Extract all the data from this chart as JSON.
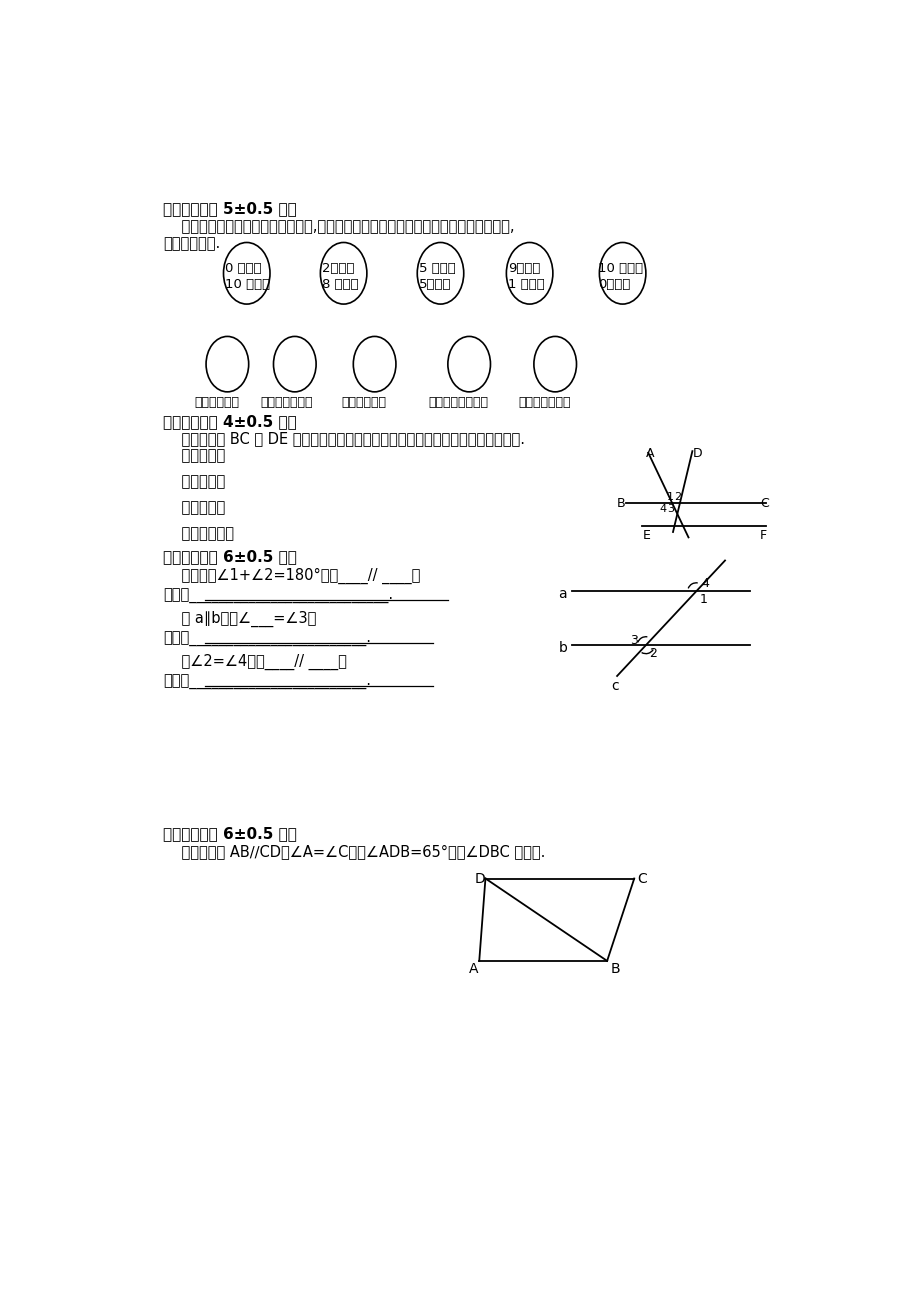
{
  "bg_color": "#ffffff",
  "section5_title": "五、（本大题 5±0.5 分）",
  "section5_desc": "    下面第一排表示了各袋中球的情况,请你用第二排的语言来描述摸到红球的可能性大小,",
  "section5_desc2": "并用线连起来.",
  "balls_row1_line1": [
    "0 个红球",
    "2个红球",
    "5 个红球",
    "9个红球",
    "10 个红球"
  ],
  "balls_row1_line2": [
    "10 个白球",
    "8 个白球",
    "5个白球",
    "1 个白球",
    "0个白球"
  ],
  "balls_row2": [
    "一定摸到红球",
    "很可能摸到红球",
    "可能摸到红球",
    "不太可能摸到红球",
    "不可能摸到红球"
  ],
  "section6_title": "六、（本大题 4±0.5 分）",
  "section6_desc": "    如图，直线 BC 与 DE 相交，请分别指出图的对顶角、内错角、同位角和同旁内角.",
  "section6_q1": "    对顶角有：",
  "section6_q2": "    同位角有：",
  "section6_q3": "    内错角有：",
  "section6_q4": "    同旁内角有：",
  "section7_title": "七、（本大题 6±0.5 分）",
  "section7_q1": "    如图，若∠1+∠2=180°，则____// ____，",
  "section7_q1b": "理由是___________________________.",
  "section7_q2": "    若 a∥b，则∠___=∠3，",
  "section7_q2b": "理由是________________________.",
  "section7_q3": "    若∠2=∠4，则____// ____，",
  "section7_q3b": "理由是________________________.",
  "section8_title": "八、（本大题 6±0.5 分）",
  "section8_desc": "    如图，已知 AB∕∕CD，∠A=∠C，若∠ADB=65°，求∠DBC 的度数."
}
